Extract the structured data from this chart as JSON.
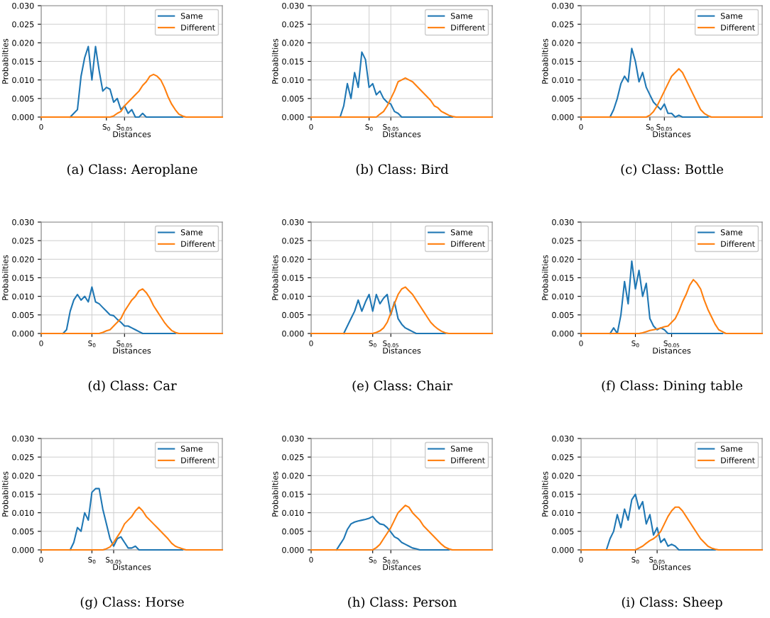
{
  "chart_data": [
    {
      "type": "line",
      "xlabel": "Distances",
      "ylabel": "Probabilties",
      "annotations": [
        "(a) Class: Aeroplane"
      ],
      "categories": [
        "0",
        null,
        null,
        null,
        null,
        null,
        null,
        null,
        null,
        null,
        null,
        null,
        null,
        null,
        null,
        null,
        null,
        null,
        "S$_{0}$",
        null,
        null,
        null,
        null,
        "S$_{0.05}$",
        null,
        null,
        null,
        null,
        null,
        null,
        null,
        null,
        null,
        null,
        null,
        null,
        null,
        null,
        null,
        null,
        null,
        null,
        null,
        null,
        null,
        null,
        null,
        null,
        null,
        null,
        null
      ],
      "ylim": [
        0,
        0.03
      ],
      "yticks": [
        {
          "value": 0,
          "label": "0.000"
        },
        {
          "value": 0.005,
          "label": "0.005"
        },
        {
          "value": 0.01,
          "label": "0.010"
        },
        {
          "value": 0.015,
          "label": "0.015"
        },
        {
          "value": 0.02,
          "label": "0.020"
        },
        {
          "value": 0.025,
          "label": "0.025"
        },
        {
          "value": 0.03,
          "label": "0.030"
        }
      ],
      "grid": true,
      "legend": "top right",
      "series": [
        {
          "name": "Same",
          "color": "#1f77b4",
          "values": [
            null,
            null,
            null,
            null,
            null,
            null,
            null,
            null,
            0,
            0.001,
            0.002,
            0.011,
            0.016,
            0.019,
            0.01,
            0.019,
            0.0125,
            0.007,
            0.008,
            0.0075,
            0.004,
            0.005,
            0.002,
            0.003,
            0.001,
            0.002,
            0,
            0,
            0.001,
            0,
            0,
            0,
            0,
            0,
            0,
            0,
            0,
            0,
            0,
            0,
            null,
            null,
            null,
            null,
            null,
            null,
            null,
            null,
            null,
            null,
            null
          ]
        },
        {
          "name": "Different",
          "color": "#ff7f0e",
          "values": [
            0,
            0,
            0,
            0,
            0,
            0,
            0,
            0,
            0,
            0,
            0,
            0,
            0,
            0,
            0,
            0,
            0,
            0,
            0,
            0,
            0.0003,
            0.001,
            0.0015,
            0.003,
            0.004,
            0.005,
            0.006,
            0.007,
            0.0085,
            0.0095,
            0.011,
            0.0115,
            0.011,
            0.01,
            0.008,
            0.0055,
            0.0035,
            0.002,
            0.0008,
            0.0003,
            0,
            0,
            0,
            0,
            0,
            0,
            0,
            0,
            0,
            0,
            0
          ]
        }
      ]
    },
    {
      "type": "line",
      "xlabel": "Distances",
      "ylabel": "Probabilties",
      "annotations": [
        "(b) Class: Bird"
      ],
      "categories": [
        "0",
        null,
        null,
        null,
        null,
        null,
        null,
        null,
        null,
        null,
        null,
        null,
        null,
        null,
        null,
        null,
        "S$_{0}$",
        null,
        null,
        null,
        null,
        null,
        "S$_{0.05}$",
        null,
        null,
        null,
        null,
        null,
        null,
        null,
        null,
        null,
        null,
        null,
        null,
        null,
        null,
        null,
        null,
        null,
        null,
        null,
        null,
        null,
        null,
        null,
        null,
        null,
        null,
        null,
        null
      ],
      "ylim": [
        0,
        0.03
      ],
      "yticks": [
        {
          "value": 0,
          "label": "0.000"
        },
        {
          "value": 0.005,
          "label": "0.005"
        },
        {
          "value": 0.01,
          "label": "0.010"
        },
        {
          "value": 0.015,
          "label": "0.015"
        },
        {
          "value": 0.02,
          "label": "0.020"
        },
        {
          "value": 0.025,
          "label": "0.025"
        },
        {
          "value": 0.03,
          "label": "0.030"
        }
      ],
      "grid": true,
      "legend": "top right",
      "series": [
        {
          "name": "Same",
          "color": "#1f77b4",
          "values": [
            null,
            null,
            null,
            null,
            null,
            null,
            null,
            null,
            0,
            0.003,
            0.009,
            0.005,
            0.012,
            0.008,
            0.0175,
            0.0155,
            0.008,
            0.009,
            0.006,
            0.007,
            0.005,
            0.004,
            0.0035,
            0.0015,
            0.001,
            0,
            0,
            0,
            0,
            0,
            0,
            0,
            0,
            0,
            0,
            0,
            0,
            0,
            0,
            0,
            null,
            null,
            null,
            null,
            null,
            null,
            null,
            null,
            null,
            null,
            null
          ]
        },
        {
          "name": "Different",
          "color": "#ff7f0e",
          "values": [
            0,
            0,
            0,
            0,
            0,
            0,
            0,
            0,
            0,
            0,
            0,
            0,
            0,
            0,
            0,
            0,
            0,
            0,
            0,
            0.0008,
            0.0015,
            0.003,
            0.005,
            0.007,
            0.0095,
            0.01,
            0.0105,
            0.01,
            0.0095,
            0.0085,
            0.0075,
            0.0065,
            0.0055,
            0.0045,
            0.003,
            0.0025,
            0.0015,
            0.001,
            0.0005,
            0.0002,
            0,
            0,
            0,
            0,
            0,
            0,
            0,
            0,
            0,
            0,
            0
          ]
        }
      ]
    },
    {
      "type": "line",
      "xlabel": "Distances",
      "ylabel": "Probabilties",
      "annotations": [
        "(c) Class: Bottle"
      ],
      "categories": [
        "0",
        null,
        null,
        null,
        null,
        null,
        null,
        null,
        null,
        null,
        null,
        null,
        null,
        null,
        null,
        null,
        null,
        null,
        null,
        "S$_{0}$",
        null,
        null,
        null,
        "S$_{0.05}$",
        null,
        null,
        null,
        null,
        null,
        null,
        null,
        null,
        null,
        null,
        null,
        null,
        null,
        null,
        null,
        null,
        null,
        null,
        null,
        null,
        null,
        null,
        null,
        null,
        null,
        null,
        null
      ],
      "ylim": [
        0,
        0.03
      ],
      "yticks": [
        {
          "value": 0,
          "label": "0.000"
        },
        {
          "value": 0.005,
          "label": "0.005"
        },
        {
          "value": 0.01,
          "label": "0.010"
        },
        {
          "value": 0.015,
          "label": "0.015"
        },
        {
          "value": 0.02,
          "label": "0.020"
        },
        {
          "value": 0.025,
          "label": "0.025"
        },
        {
          "value": 0.03,
          "label": "0.030"
        }
      ],
      "grid": true,
      "legend": "top right",
      "series": [
        {
          "name": "Same",
          "color": "#1f77b4",
          "values": [
            null,
            null,
            null,
            null,
            null,
            null,
            null,
            null,
            0,
            0.002,
            0.005,
            0.009,
            0.011,
            0.0095,
            0.0185,
            0.015,
            0.0095,
            0.012,
            0.008,
            0.006,
            0.004,
            0.003,
            0.002,
            0.0035,
            0.001,
            0.001,
            0,
            0.0005,
            0,
            0,
            0,
            0,
            0,
            0,
            0,
            0,
            null,
            null,
            null,
            null,
            null,
            null,
            null,
            null,
            null,
            null,
            null,
            null,
            null,
            null,
            null
          ]
        },
        {
          "name": "Different",
          "color": "#ff7f0e",
          "values": [
            0,
            0,
            0,
            0,
            0,
            0,
            0,
            0,
            0,
            0,
            0,
            0,
            0,
            0,
            0,
            0,
            0,
            0,
            0,
            0.0005,
            0.0015,
            0.003,
            0.005,
            0.007,
            0.009,
            0.011,
            0.012,
            0.013,
            0.012,
            0.01,
            0.008,
            0.006,
            0.004,
            0.002,
            0.001,
            0.0004,
            0,
            0,
            0,
            0,
            0,
            0,
            0,
            0,
            0,
            0,
            0,
            0,
            0,
            0,
            0
          ]
        }
      ]
    },
    {
      "type": "line",
      "xlabel": "Distances",
      "ylabel": "Probabilties",
      "annotations": [
        "(d) Class: Car"
      ],
      "categories": [
        "0",
        null,
        null,
        null,
        null,
        null,
        null,
        null,
        null,
        null,
        null,
        null,
        null,
        null,
        "S$_{0}$",
        null,
        null,
        null,
        null,
        null,
        null,
        null,
        null,
        "S$_{0.05}$",
        null,
        null,
        null,
        null,
        null,
        null,
        null,
        null,
        null,
        null,
        null,
        null,
        null,
        null,
        null,
        null,
        null,
        null,
        null,
        null,
        null,
        null,
        null,
        null,
        null,
        null,
        null
      ],
      "ylim": [
        0,
        0.03
      ],
      "yticks": [
        {
          "value": 0,
          "label": "0.000"
        },
        {
          "value": 0.005,
          "label": "0.005"
        },
        {
          "value": 0.01,
          "label": "0.010"
        },
        {
          "value": 0.015,
          "label": "0.015"
        },
        {
          "value": 0.02,
          "label": "0.020"
        },
        {
          "value": 0.025,
          "label": "0.025"
        },
        {
          "value": 0.03,
          "label": "0.030"
        }
      ],
      "grid": true,
      "legend": "top right",
      "series": [
        {
          "name": "Same",
          "color": "#1f77b4",
          "values": [
            null,
            null,
            null,
            null,
            null,
            null,
            0,
            0.001,
            0.006,
            0.009,
            0.0105,
            0.009,
            0.01,
            0.0085,
            0.0125,
            0.0085,
            0.008,
            0.007,
            0.006,
            0.005,
            0.0048,
            0.0038,
            0.003,
            0.002,
            0.002,
            0.0015,
            0.001,
            0.0005,
            0,
            0,
            0,
            0,
            0,
            0,
            0,
            0,
            0,
            0,
            null,
            null,
            null,
            null,
            null,
            null,
            null,
            null,
            null,
            null,
            null,
            null,
            null
          ]
        },
        {
          "name": "Different",
          "color": "#ff7f0e",
          "values": [
            0,
            0,
            0,
            0,
            0,
            0,
            0,
            0,
            0,
            0,
            0,
            0,
            0,
            0,
            0,
            0,
            0,
            0.0003,
            0.0007,
            0.001,
            0.002,
            0.003,
            0.004,
            0.006,
            0.0075,
            0.009,
            0.01,
            0.0115,
            0.012,
            0.011,
            0.0095,
            0.0075,
            0.006,
            0.0045,
            0.003,
            0.0018,
            0.0008,
            0.0003,
            0,
            0,
            0,
            0,
            0,
            0,
            0,
            0,
            0,
            0,
            0,
            0,
            0
          ]
        }
      ]
    },
    {
      "type": "line",
      "xlabel": "Distances",
      "ylabel": "Probabilties",
      "annotations": [
        "(e) Class: Chair"
      ],
      "categories": [
        "0",
        null,
        null,
        null,
        null,
        null,
        null,
        null,
        null,
        null,
        null,
        null,
        null,
        null,
        null,
        null,
        null,
        "S$_{0}$",
        null,
        null,
        null,
        null,
        "S$_{0.05}$",
        null,
        null,
        null,
        null,
        null,
        null,
        null,
        null,
        null,
        null,
        null,
        null,
        null,
        null,
        null,
        null,
        null,
        null,
        null,
        null,
        null,
        null,
        null,
        null,
        null,
        null,
        null,
        null
      ],
      "ylim": [
        0,
        0.03
      ],
      "yticks": [
        {
          "value": 0,
          "label": "0.000"
        },
        {
          "value": 0.005,
          "label": "0.005"
        },
        {
          "value": 0.01,
          "label": "0.010"
        },
        {
          "value": 0.015,
          "label": "0.015"
        },
        {
          "value": 0.02,
          "label": "0.020"
        },
        {
          "value": 0.025,
          "label": "0.025"
        },
        {
          "value": 0.03,
          "label": "0.030"
        }
      ],
      "grid": true,
      "legend": "top right",
      "series": [
        {
          "name": "Same",
          "color": "#1f77b4",
          "values": [
            null,
            null,
            null,
            null,
            null,
            null,
            null,
            null,
            null,
            0,
            0.002,
            0.004,
            0.006,
            0.009,
            0.006,
            0.0085,
            0.0105,
            0.006,
            0.0105,
            0.008,
            0.0095,
            0.0105,
            0.005,
            0.0085,
            0.004,
            0.0025,
            0.0015,
            0.001,
            0.0005,
            0,
            0,
            0,
            0,
            0,
            0,
            0,
            0,
            0,
            null,
            null,
            null,
            null,
            null,
            null,
            null,
            null,
            null,
            null,
            null,
            null,
            null
          ]
        },
        {
          "name": "Different",
          "color": "#ff7f0e",
          "values": [
            0,
            0,
            0,
            0,
            0,
            0,
            0,
            0,
            0,
            0,
            0,
            0,
            0,
            0,
            0,
            0,
            0,
            0,
            0.0003,
            0.0007,
            0.0015,
            0.003,
            0.0055,
            0.008,
            0.0105,
            0.012,
            0.0125,
            0.0115,
            0.0105,
            0.009,
            0.0075,
            0.006,
            0.0045,
            0.003,
            0.002,
            0.0012,
            0.0006,
            0.0002,
            0,
            0,
            0,
            0,
            0,
            0,
            0,
            0,
            0,
            0,
            0,
            0,
            0
          ]
        }
      ]
    },
    {
      "type": "line",
      "xlabel": "Distances",
      "ylabel": "Probabilties",
      "annotations": [
        "(f) Class: Dining table"
      ],
      "categories": [
        "0",
        null,
        null,
        null,
        null,
        null,
        null,
        null,
        null,
        null,
        null,
        null,
        null,
        null,
        null,
        "S$_{0}$",
        null,
        null,
        null,
        null,
        null,
        null,
        null,
        null,
        null,
        "S$_{0.05}$",
        null,
        null,
        null,
        null,
        null,
        null,
        null,
        null,
        null,
        null,
        null,
        null,
        null,
        null,
        null,
        null,
        null,
        null,
        null,
        null,
        null,
        null,
        null,
        null,
        null
      ],
      "ylim": [
        0,
        0.03
      ],
      "yticks": [
        {
          "value": 0,
          "label": "0.000"
        },
        {
          "value": 0.005,
          "label": "0.005"
        },
        {
          "value": 0.01,
          "label": "0.010"
        },
        {
          "value": 0.015,
          "label": "0.015"
        },
        {
          "value": 0.02,
          "label": "0.020"
        },
        {
          "value": 0.025,
          "label": "0.025"
        },
        {
          "value": 0.03,
          "label": "0.030"
        }
      ],
      "grid": true,
      "legend": "top right",
      "series": [
        {
          "name": "Same",
          "color": "#1f77b4",
          "values": [
            null,
            null,
            null,
            null,
            null,
            null,
            null,
            null,
            0,
            0.0015,
            0,
            0.005,
            0.014,
            0.008,
            0.0195,
            0.012,
            0.017,
            0.01,
            0.0135,
            0.004,
            0.002,
            0.001,
            0.0015,
            0.001,
            0,
            0,
            0,
            0,
            0,
            0,
            0,
            0,
            0,
            0,
            0,
            0,
            0,
            0,
            0,
            0,
            null,
            null,
            null,
            null,
            null,
            null,
            null,
            null,
            null,
            null,
            null
          ]
        },
        {
          "name": "Different",
          "color": "#ff7f0e",
          "values": [
            0,
            0,
            0,
            0,
            0,
            0,
            0,
            0,
            0,
            0,
            0,
            0,
            0,
            0,
            0,
            0,
            0,
            0.0002,
            0.0005,
            0.0008,
            0.001,
            0.0012,
            0.0015,
            0.0018,
            0.002,
            0.003,
            0.004,
            0.006,
            0.0085,
            0.0105,
            0.013,
            0.0145,
            0.0135,
            0.012,
            0.009,
            0.0065,
            0.0045,
            0.0025,
            0.001,
            0.0005,
            0,
            0,
            0,
            0,
            0,
            0,
            0,
            0,
            0,
            0,
            0
          ]
        }
      ]
    },
    {
      "type": "line",
      "xlabel": "Distances",
      "ylabel": "Probabilties",
      "annotations": [
        "(g) Class: Horse"
      ],
      "categories": [
        "0",
        null,
        null,
        null,
        null,
        null,
        null,
        null,
        null,
        null,
        null,
        null,
        null,
        null,
        "S$_{0}$",
        null,
        null,
        null,
        null,
        null,
        "S$_{0.05}$",
        null,
        null,
        null,
        null,
        null,
        null,
        null,
        null,
        null,
        null,
        null,
        null,
        null,
        null,
        null,
        null,
        null,
        null,
        null,
        null,
        null,
        null,
        null,
        null,
        null,
        null,
        null,
        null,
        null,
        null
      ],
      "ylim": [
        0,
        0.03
      ],
      "yticks": [
        {
          "value": 0,
          "label": "0.000"
        },
        {
          "value": 0.005,
          "label": "0.005"
        },
        {
          "value": 0.01,
          "label": "0.010"
        },
        {
          "value": 0.015,
          "label": "0.015"
        },
        {
          "value": 0.02,
          "label": "0.020"
        },
        {
          "value": 0.025,
          "label": "0.025"
        },
        {
          "value": 0.03,
          "label": "0.030"
        }
      ],
      "grid": true,
      "legend": "top right",
      "series": [
        {
          "name": "Same",
          "color": "#1f77b4",
          "values": [
            null,
            null,
            null,
            null,
            null,
            null,
            null,
            null,
            0,
            0.002,
            0.006,
            0.005,
            0.01,
            0.008,
            0.0155,
            0.0165,
            0.0165,
            0.011,
            0.007,
            0.003,
            0.001,
            0.003,
            0.0035,
            0.002,
            0.0005,
            0.0005,
            0.001,
            0,
            0,
            0,
            0,
            0,
            0,
            0,
            0,
            0,
            0,
            0,
            0,
            0,
            null,
            null,
            null,
            null,
            null,
            null,
            null,
            null,
            null,
            null,
            null
          ]
        },
        {
          "name": "Different",
          "color": "#ff7f0e",
          "values": [
            0,
            0,
            0,
            0,
            0,
            0,
            0,
            0,
            0,
            0,
            0,
            0,
            0,
            0,
            0,
            0,
            0,
            0,
            0.0003,
            0.0008,
            0.002,
            0.0035,
            0.005,
            0.007,
            0.008,
            0.009,
            0.0105,
            0.0115,
            0.0105,
            0.009,
            0.008,
            0.007,
            0.006,
            0.005,
            0.004,
            0.003,
            0.0018,
            0.001,
            0.0006,
            0.0003,
            0,
            0,
            0,
            0,
            0,
            0,
            0,
            0,
            0,
            0,
            0
          ]
        }
      ]
    },
    {
      "type": "line",
      "xlabel": "Distances",
      "ylabel": "Probabilties",
      "annotations": [
        "(h) Class: Person"
      ],
      "categories": [
        "0",
        null,
        null,
        null,
        null,
        null,
        null,
        null,
        null,
        null,
        null,
        null,
        null,
        null,
        null,
        null,
        null,
        "S$_{0}$",
        null,
        null,
        null,
        null,
        "S$_{0.05}$",
        null,
        null,
        null,
        null,
        null,
        null,
        null,
        null,
        null,
        null,
        null,
        null,
        null,
        null,
        null,
        null,
        null,
        null,
        null,
        null,
        null,
        null,
        null,
        null,
        null,
        null,
        null,
        null
      ],
      "ylim": [
        0,
        0.03
      ],
      "yticks": [
        {
          "value": 0,
          "label": "0.000"
        },
        {
          "value": 0.005,
          "label": "0.005"
        },
        {
          "value": 0.01,
          "label": "0.010"
        },
        {
          "value": 0.015,
          "label": "0.015"
        },
        {
          "value": 0.02,
          "label": "0.020"
        },
        {
          "value": 0.025,
          "label": "0.025"
        },
        {
          "value": 0.03,
          "label": "0.030"
        }
      ],
      "grid": true,
      "legend": "top right",
      "series": [
        {
          "name": "Same",
          "color": "#1f77b4",
          "values": [
            null,
            null,
            null,
            null,
            null,
            null,
            null,
            0,
            0.0015,
            0.003,
            0.0055,
            0.007,
            0.0075,
            0.0078,
            0.008,
            0.0082,
            0.0085,
            0.009,
            0.0078,
            0.007,
            0.0068,
            0.006,
            0.0048,
            0.0035,
            0.003,
            0.002,
            0.0015,
            0.001,
            0.0005,
            0.0003,
            0,
            0,
            0,
            0,
            0,
            0,
            0,
            0,
            0,
            null,
            null,
            null,
            null,
            null,
            null,
            null,
            null,
            null,
            null,
            null,
            null
          ]
        },
        {
          "name": "Different",
          "color": "#ff7f0e",
          "values": [
            0,
            0,
            0,
            0,
            0,
            0,
            0,
            0,
            0,
            0,
            0,
            0,
            0,
            0,
            0,
            0,
            0,
            0,
            0.0006,
            0.0015,
            0.003,
            0.0045,
            0.006,
            0.008,
            0.01,
            0.011,
            0.012,
            0.0115,
            0.01,
            0.009,
            0.008,
            0.0065,
            0.0055,
            0.0045,
            0.0035,
            0.0025,
            0.0015,
            0.0007,
            0.0003,
            0,
            0,
            0,
            0,
            0,
            0,
            0,
            0,
            0,
            0,
            0,
            0
          ]
        }
      ]
    },
    {
      "type": "line",
      "xlabel": "Distances",
      "ylabel": "Probabilties",
      "annotations": [
        "(i) Class: Sheep"
      ],
      "categories": [
        "0",
        null,
        null,
        null,
        null,
        null,
        null,
        null,
        null,
        null,
        null,
        null,
        null,
        null,
        null,
        "S$_{0}$",
        null,
        null,
        null,
        null,
        null,
        "S$_{0.05}$",
        null,
        null,
        null,
        null,
        null,
        null,
        null,
        null,
        null,
        null,
        null,
        null,
        null,
        null,
        null,
        null,
        null,
        null,
        null,
        null,
        null,
        null,
        null,
        null,
        null,
        null,
        null,
        null,
        null
      ],
      "ylim": [
        0,
        0.03
      ],
      "yticks": [
        {
          "value": 0,
          "label": "0.000"
        },
        {
          "value": 0.005,
          "label": "0.005"
        },
        {
          "value": 0.01,
          "label": "0.010"
        },
        {
          "value": 0.015,
          "label": "0.015"
        },
        {
          "value": 0.02,
          "label": "0.020"
        },
        {
          "value": 0.025,
          "label": "0.025"
        },
        {
          "value": 0.03,
          "label": "0.030"
        }
      ],
      "grid": true,
      "legend": "top right",
      "series": [
        {
          "name": "Same",
          "color": "#1f77b4",
          "values": [
            null,
            null,
            null,
            null,
            null,
            null,
            null,
            0,
            0.003,
            0.005,
            0.0095,
            0.006,
            0.011,
            0.008,
            0.0135,
            0.015,
            0.011,
            0.013,
            0.007,
            0.0095,
            0.004,
            0.006,
            0.002,
            0.003,
            0.001,
            0.0015,
            0.001,
            0,
            0,
            0,
            0,
            0,
            0,
            0,
            0,
            0,
            0,
            0,
            null,
            null,
            null,
            null,
            null,
            null,
            null,
            null,
            null,
            null,
            null,
            null,
            null
          ]
        },
        {
          "name": "Different",
          "color": "#ff7f0e",
          "values": [
            0,
            0,
            0,
            0,
            0,
            0,
            0,
            0,
            0,
            0,
            0,
            0,
            0,
            0,
            0,
            0,
            0.0005,
            0.001,
            0.0018,
            0.0025,
            0.003,
            0.0038,
            0.005,
            0.007,
            0.009,
            0.0105,
            0.0115,
            0.0115,
            0.0105,
            0.009,
            0.0075,
            0.006,
            0.0045,
            0.003,
            0.002,
            0.001,
            0.0005,
            0.0002,
            0,
            0,
            0,
            0,
            0,
            0,
            0,
            0,
            0,
            0,
            0,
            0,
            0
          ]
        }
      ]
    }
  ]
}
